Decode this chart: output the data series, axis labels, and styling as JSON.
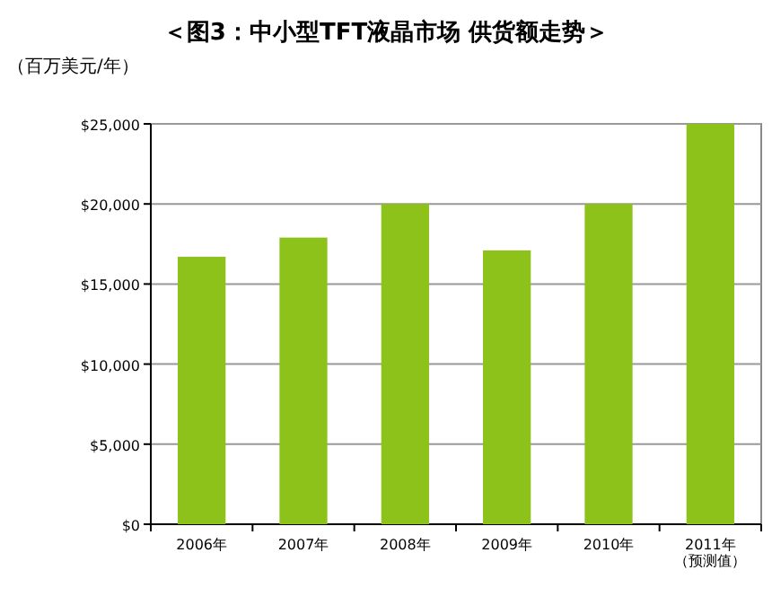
{
  "chart_data": {
    "type": "bar",
    "title": "＜图3：中小型TFT液晶市场 供货额走势＞",
    "ylabel": "（百万美元/年）",
    "categories": [
      "2006年",
      "2007年",
      "2008年",
      "2009年",
      "2010年",
      "2011年（预测值）"
    ],
    "values": [
      16700,
      17900,
      20000,
      17100,
      20000,
      25000
    ],
    "color": "#8cc21a",
    "ylim": [
      0,
      25000
    ],
    "yticks": [
      {
        "value": 0,
        "label": "$0"
      },
      {
        "value": 5000,
        "label": "$5,000"
      },
      {
        "value": 10000,
        "label": "$10,000"
      },
      {
        "value": 15000,
        "label": "$15,000"
      },
      {
        "value": 20000,
        "label": "$20,000"
      },
      {
        "value": 25000,
        "label": "$25,000"
      }
    ],
    "grid": "y"
  }
}
